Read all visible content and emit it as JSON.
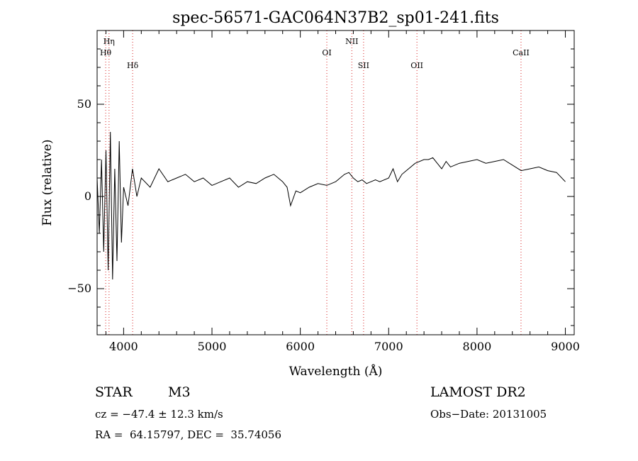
{
  "chart_data": {
    "type": "line",
    "title": "spec-56571-GAC064N37B2_sp01-241.fits",
    "xlabel": "Wavelength (Å)",
    "ylabel": "Flux (relative)",
    "xlim": [
      3700,
      9100
    ],
    "ylim": [
      -75,
      90
    ],
    "xticks": [
      4000,
      5000,
      6000,
      7000,
      8000,
      9000
    ],
    "xtick_labels": [
      "4000",
      "5000",
      "6000",
      "7000",
      "8000",
      "9000"
    ],
    "yticks": [
      -50,
      0,
      50
    ],
    "ytick_labels": [
      "−50",
      "0",
      "50"
    ],
    "grid": false,
    "lines": [
      {
        "name": "Hη",
        "wavelength": 3835
      },
      {
        "name": "Hθ",
        "wavelength": 3797
      },
      {
        "name": "Hδ",
        "wavelength": 4102
      },
      {
        "name": "OI",
        "wavelength": 6300
      },
      {
        "name": "NII",
        "wavelength": 6583
      },
      {
        "name": "SII",
        "wavelength": 6716
      },
      {
        "name": "OII",
        "wavelength": 7320
      },
      {
        "name": "CaII",
        "wavelength": 8498
      }
    ],
    "series": [
      {
        "x": [
          3700,
          3725,
          3750,
          3775,
          3800,
          3825,
          3850,
          3875,
          3900,
          3925,
          3950,
          3975,
          4000,
          4050,
          4100,
          4150,
          4200,
          4300,
          4400,
          4500,
          4600,
          4700,
          4800,
          4900,
          5000,
          5100,
          5200,
          5300,
          5400,
          5500,
          5600,
          5700,
          5800,
          5850,
          5890,
          5950,
          6000,
          6100,
          6200,
          6300,
          6400,
          6500,
          6550,
          6600,
          6650,
          6700,
          6750,
          6800,
          6850,
          6900,
          7000,
          7050,
          7100,
          7150,
          7200,
          7300,
          7400,
          7450,
          7500,
          7550,
          7600,
          7650,
          7700,
          7800,
          7900,
          8000,
          8100,
          8200,
          8300,
          8400,
          8500,
          8600,
          8700,
          8800,
          8900,
          9000
        ],
        "y": [
          10,
          -20,
          20,
          -30,
          25,
          -40,
          35,
          -45,
          15,
          -35,
          30,
          -25,
          5,
          -5,
          15,
          0,
          10,
          5,
          15,
          8,
          10,
          12,
          8,
          10,
          6,
          8,
          10,
          5,
          8,
          7,
          10,
          12,
          8,
          5,
          -5,
          3,
          2,
          5,
          7,
          6,
          8,
          12,
          13,
          10,
          8,
          9,
          7,
          8,
          9,
          8,
          10,
          15,
          8,
          12,
          14,
          18,
          20,
          20,
          21,
          18,
          15,
          19,
          16,
          18,
          19,
          20,
          18,
          19,
          20,
          17,
          14,
          15,
          16,
          14,
          13,
          8
        ]
      }
    ]
  },
  "info": {
    "object_type": "STAR",
    "subclass": "M3",
    "cz": "cz = −47.4 ± 12.3 km/s",
    "coords": "RA =  64.15797, DEC =  35.74056",
    "survey": "LAMOST DR2",
    "obs_date": "Obs−Date: 20131005"
  }
}
